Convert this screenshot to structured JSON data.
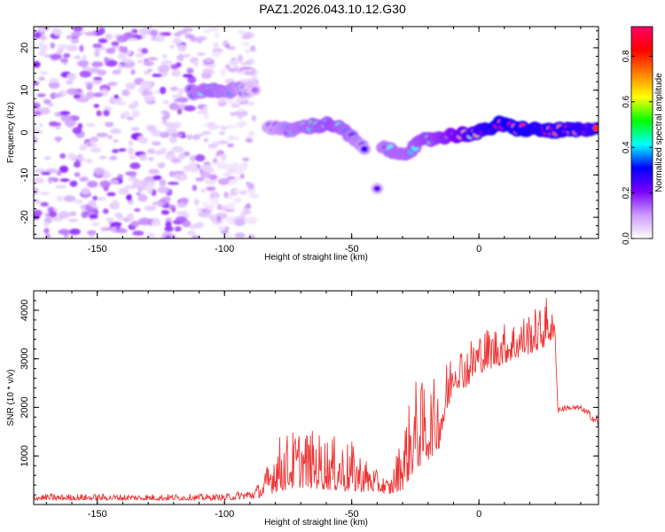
{
  "title": "PAZ1.2026.043.10.12.G30",
  "chart_data": [
    {
      "type": "heatmap",
      "name": "spectrogram",
      "xlabel": "Height of straight line (km)",
      "ylabel": "Frequency (Hz)",
      "xlim": [
        -175,
        47
      ],
      "ylim": [
        -25,
        25
      ],
      "x_ticks": [
        -150,
        -100,
        -50,
        0
      ],
      "y_ticks": [
        -20,
        -10,
        0,
        10,
        20
      ],
      "colorbar": {
        "label": "Normalized spectral amplitude",
        "range": [
          0.0,
          0.93
        ],
        "ticks": [
          0.0,
          0.2,
          0.4,
          0.6,
          0.8
        ],
        "colors": [
          "#ffffff",
          "#cc99ff",
          "#7a00ff",
          "#0000ff",
          "#00ffff",
          "#00ff00",
          "#ffff00",
          "#ff8000",
          "#ff0000",
          "#ff0066"
        ]
      },
      "noise_region": {
        "x_range": [
          -175,
          -88
        ],
        "freq_range": [
          -25,
          25
        ]
      },
      "signal_track": [
        {
          "x": -113,
          "freq": 9.5,
          "amp": 0.35
        },
        {
          "x": -105,
          "freq": 10.0,
          "amp": 0.4
        },
        {
          "x": -96,
          "freq": 10.0,
          "amp": 0.35
        },
        {
          "x": -88,
          "freq": 10.5,
          "amp": 0.15
        },
        {
          "x": -83,
          "freq": 1.5,
          "amp": 0.25
        },
        {
          "x": -75,
          "freq": 0.5,
          "amp": 0.35
        },
        {
          "x": -67,
          "freq": 1.5,
          "amp": 0.4
        },
        {
          "x": -58,
          "freq": 2.0,
          "amp": 0.45
        },
        {
          "x": -52,
          "freq": 0.0,
          "amp": 0.4
        },
        {
          "x": -45,
          "freq": -4.0,
          "amp": 0.3
        },
        {
          "x": -40,
          "freq": -13.5,
          "amp": 0.2
        },
        {
          "x": -38,
          "freq": -3.0,
          "amp": 0.35
        },
        {
          "x": -33,
          "freq": -5.0,
          "amp": 0.4
        },
        {
          "x": -28,
          "freq": -4.5,
          "amp": 0.4
        },
        {
          "x": -22,
          "freq": -2.0,
          "amp": 0.45
        },
        {
          "x": -15,
          "freq": -1.0,
          "amp": 0.5
        },
        {
          "x": -8,
          "freq": -0.5,
          "amp": 0.6
        },
        {
          "x": 0,
          "freq": 0.0,
          "amp": 0.75
        },
        {
          "x": 8,
          "freq": 2.0,
          "amp": 0.85
        },
        {
          "x": 15,
          "freq": 1.0,
          "amp": 0.85
        },
        {
          "x": 25,
          "freq": 0.5,
          "amp": 0.8
        },
        {
          "x": 35,
          "freq": 0.5,
          "amp": 0.8
        },
        {
          "x": 47,
          "freq": 0.5,
          "amp": 0.75
        }
      ]
    },
    {
      "type": "line",
      "name": "snr",
      "xlabel": "Height of straight line (km)",
      "ylabel": "SNR (10 * v/v)",
      "xlim": [
        -175,
        47
      ],
      "ylim": [
        0,
        4400
      ],
      "x_ticks": [
        -150,
        -100,
        -50,
        0
      ],
      "y_ticks": [
        1000,
        2000,
        3000,
        4000
      ],
      "color": "#ee3333",
      "envelope": {
        "x": [
          -175,
          -100,
          -90,
          -85,
          -80,
          -70,
          -60,
          -50,
          -40,
          -35,
          -30,
          -25,
          -20,
          -15,
          -10,
          -5,
          0,
          5,
          10,
          15,
          20,
          25,
          27,
          30,
          31,
          35,
          40,
          47
        ],
        "low": [
          90,
          90,
          110,
          150,
          250,
          350,
          300,
          250,
          250,
          200,
          300,
          700,
          900,
          1200,
          2400,
          2400,
          2700,
          2800,
          2900,
          3000,
          3100,
          3200,
          3350,
          3350,
          1900,
          1950,
          1950,
          1600
        ],
        "high": [
          220,
          220,
          330,
          500,
          1400,
          1600,
          1450,
          1300,
          700,
          500,
          1600,
          2600,
          2500,
          2700,
          3300,
          3350,
          3600,
          3700,
          3750,
          3850,
          4000,
          4100,
          4350,
          3700,
          2050,
          2050,
          2050,
          1850
        ]
      }
    }
  ]
}
